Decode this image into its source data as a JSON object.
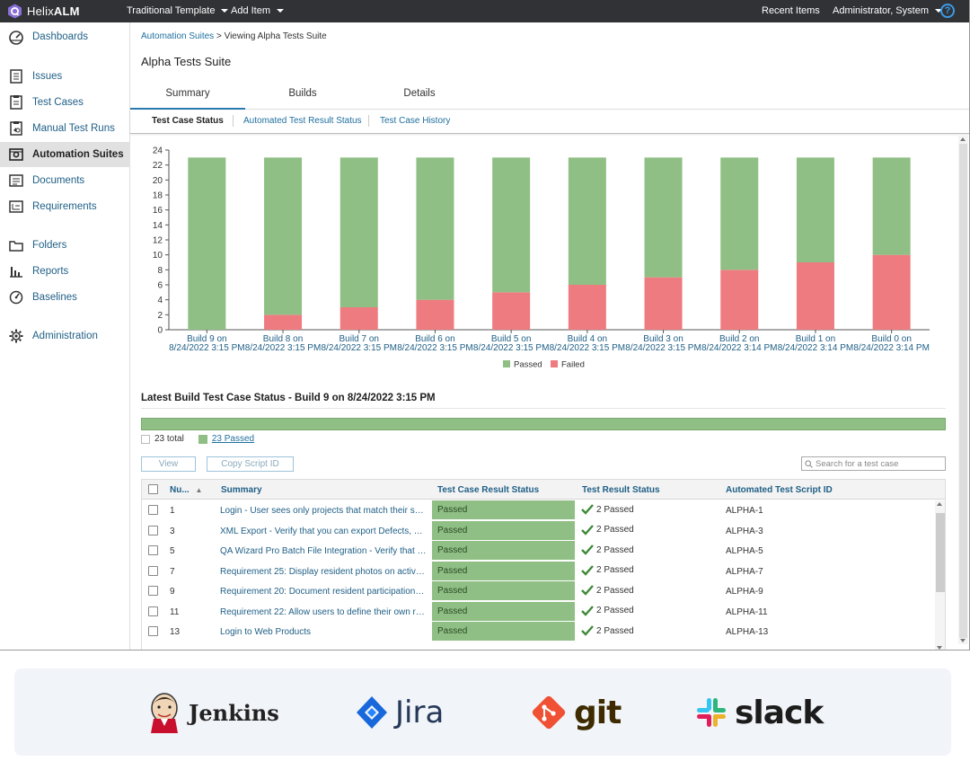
{
  "topbar": {
    "brand_pre": "Helix",
    "brand_bold": "ALM",
    "menus": [
      "Traditional Template",
      "Add Item"
    ],
    "right": [
      "Recent Items",
      "Administrator, System"
    ],
    "help": "?"
  },
  "sidebar": {
    "items": [
      {
        "label": "Dashboards",
        "icon": "dashboard-icon"
      },
      {
        "label": "Issues",
        "icon": "issues-icon"
      },
      {
        "label": "Test Cases",
        "icon": "test-cases-icon"
      },
      {
        "label": "Manual Test Runs",
        "icon": "manual-test-runs-icon"
      },
      {
        "label": "Automation Suites",
        "icon": "automation-suites-icon",
        "active": true
      },
      {
        "label": "Documents",
        "icon": "documents-icon"
      },
      {
        "label": "Requirements",
        "icon": "requirements-icon"
      },
      {
        "label": "Folders",
        "icon": "folder-icon"
      },
      {
        "label": "Reports",
        "icon": "reports-icon"
      },
      {
        "label": "Baselines",
        "icon": "baselines-icon"
      },
      {
        "label": "Administration",
        "icon": "gear-icon"
      }
    ]
  },
  "breadcrumb": {
    "link": "Automation Suites",
    "sep": " > ",
    "current": "Viewing Alpha Tests Suite"
  },
  "page_title": "Alpha Tests Suite",
  "tabs": [
    "Summary",
    "Builds",
    "Details"
  ],
  "subtabs": [
    "Test Case Status",
    "Automated Test Result Status",
    "Test Case History"
  ],
  "chart_data": {
    "type": "bar",
    "stacked": true,
    "categories": [
      [
        "Build 9 on",
        "8/24/2022 3:15 PM"
      ],
      [
        "Build 8 on",
        "8/24/2022 3:15 PM"
      ],
      [
        "Build 7 on",
        "8/24/2022 3:15 PM"
      ],
      [
        "Build 6 on",
        "8/24/2022 3:15 PM"
      ],
      [
        "Build 5 on",
        "8/24/2022 3:15 PM"
      ],
      [
        "Build 4 on",
        "8/24/2022 3:15 PM"
      ],
      [
        "Build 3 on",
        "8/24/2022 3:15 PM"
      ],
      [
        "Build 2 on",
        "8/24/2022 3:14 PM"
      ],
      [
        "Build 1 on",
        "8/24/2022 3:14 PM"
      ],
      [
        "Build 0 on",
        "8/24/2022 3:14 PM"
      ]
    ],
    "series": [
      {
        "name": "Passed",
        "color": "#8fbf84",
        "values": [
          23,
          21,
          20,
          19,
          18,
          17,
          16,
          15,
          14,
          13
        ]
      },
      {
        "name": "Failed",
        "color": "#ee7b7f",
        "values": [
          0,
          2,
          3,
          4,
          5,
          6,
          7,
          8,
          9,
          10
        ]
      }
    ],
    "ylim": [
      0,
      24
    ],
    "yticks": [
      0,
      2,
      4,
      6,
      8,
      10,
      12,
      14,
      16,
      18,
      20,
      22,
      24
    ],
    "legend": "bottom-center",
    "grid": false
  },
  "latest": {
    "title": "Latest Build Test Case Status - Build 9 on 8/24/2022 3:15 PM",
    "total": "23 total",
    "passed": "23 Passed",
    "passed_fraction": 1.0
  },
  "actions": {
    "view": "View",
    "copy": "Copy Script ID",
    "search_placeholder": "Search for a test case"
  },
  "table": {
    "headers": [
      "Nu...",
      "Summary",
      "Test Case Result Status",
      "Test Result Status",
      "Automated Test Script ID"
    ],
    "sort_indicator": "▲",
    "rows": [
      {
        "num": "1",
        "summary": "Login - User sees only projects that match their se...",
        "status": "Passed",
        "result": "2 Passed",
        "script": "ALPHA-1"
      },
      {
        "num": "3",
        "summary": "XML Export - Verify that you can export Defects, Te...",
        "status": "Passed",
        "result": "2 Passed",
        "script": "ALPHA-3"
      },
      {
        "num": "5",
        "summary": "QA Wizard Pro Batch File Integration - Verify that t...",
        "status": "Passed",
        "result": "2 Passed",
        "script": "ALPHA-5"
      },
      {
        "num": "7",
        "summary": "Requirement 25: Display resident photos on activit...",
        "status": "Passed",
        "result": "2 Passed",
        "script": "ALPHA-7"
      },
      {
        "num": "9",
        "summary": "Requirement 20: Document resident participation l...",
        "status": "Passed",
        "result": "2 Passed",
        "script": "ALPHA-9"
      },
      {
        "num": "11",
        "summary": "Requirement 22: Allow users to define their own re...",
        "status": "Passed",
        "result": "2 Passed",
        "script": "ALPHA-11"
      },
      {
        "num": "13",
        "summary": "Login to Web Products",
        "status": "Passed",
        "result": "2 Passed",
        "script": "ALPHA-13"
      }
    ]
  },
  "integrations": [
    "Jenkins",
    "Jira",
    "git",
    "slack"
  ]
}
